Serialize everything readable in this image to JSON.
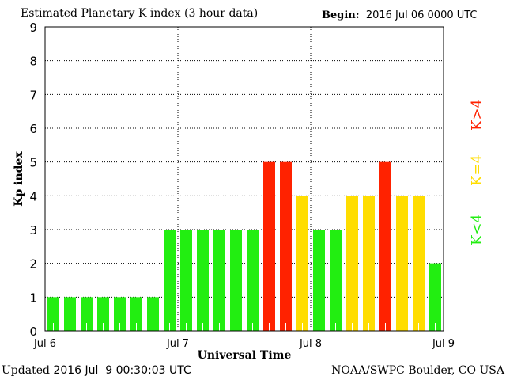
{
  "chart_data": {
    "type": "bar",
    "title": "Estimated Planetary K index (3 hour data)",
    "begin_label": "Begin:",
    "begin_value": "2016 Jul 06 0000 UTC",
    "xlabel": "Universal Time",
    "ylabel": "Kp index",
    "ylim": [
      0,
      9
    ],
    "yticks": [
      "0",
      "1",
      "2",
      "3",
      "4",
      "5",
      "6",
      "7",
      "8",
      "9"
    ],
    "xticks": [
      "Jul 6",
      "Jul 7",
      "Jul 8",
      "Jul 9"
    ],
    "grid": "dotted",
    "values": [
      1,
      1,
      1,
      1,
      1,
      1,
      1,
      3,
      3,
      3,
      3,
      3,
      3,
      5,
      5,
      4,
      3,
      3,
      4,
      4,
      5,
      4,
      4,
      2
    ],
    "legend": [
      {
        "label": "K>4",
        "color": "#ff2200"
      },
      {
        "label": "K=4",
        "color": "#ffdd00"
      },
      {
        "label": "K<4",
        "color": "#22ee11"
      }
    ],
    "colors": {
      "low": "#22ee11",
      "eq": "#ffdd00",
      "high": "#ff2200"
    }
  },
  "footer": {
    "updated_label": "Updated",
    "updated_value": "2016 Jul  9 00:30:03 UTC",
    "credit": "NOAA/SWPC Boulder, CO USA"
  }
}
